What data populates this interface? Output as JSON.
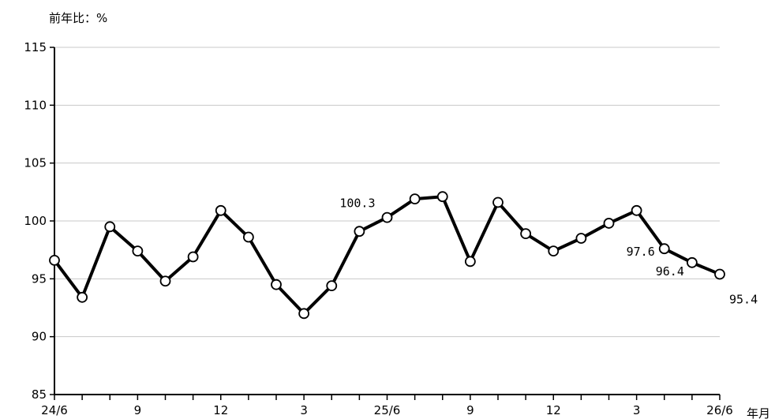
{
  "chart_data": {
    "type": "line",
    "ylabel": "前年比：%",
    "xlabel": "年月",
    "ylim": [
      85,
      115
    ],
    "yticks": [
      85,
      90,
      95,
      100,
      105,
      110,
      115
    ],
    "x": [
      "24/6",
      "24/7",
      "24/8",
      "24/9",
      "24/10",
      "24/11",
      "24/12",
      "25/1",
      "25/2",
      "25/3",
      "25/4",
      "25/5",
      "25/6",
      "25/7",
      "25/8",
      "25/9",
      "25/10",
      "25/11",
      "25/12",
      "26/1",
      "26/2",
      "26/3",
      "26/4",
      "26/5",
      "26/6"
    ],
    "xtick_labels": [
      "24/6",
      "",
      "",
      "9",
      "",
      "",
      "12",
      "",
      "",
      "3",
      "",
      "",
      "25/6",
      "",
      "",
      "9",
      "",
      "",
      "12",
      "",
      "",
      "3",
      "",
      "",
      "26/6"
    ],
    "series": [
      {
        "values": [
          96.6,
          93.4,
          99.5,
          97.4,
          94.8,
          96.9,
          100.9,
          98.6,
          94.5,
          92.0,
          94.4,
          99.1,
          100.3,
          101.9,
          102.1,
          96.5,
          101.6,
          98.9,
          97.4,
          98.5,
          99.8,
          100.9,
          97.6,
          96.4,
          95.4
        ]
      }
    ],
    "annotations": [
      {
        "index": 12,
        "text": "100.3"
      },
      {
        "index": 22,
        "text": "97.6"
      },
      {
        "index": 23,
        "text": "96.4"
      },
      {
        "index": 24,
        "text": "95.4"
      }
    ],
    "grid": true,
    "colors": {
      "line": "#000000",
      "marker_fill": "#ffffff",
      "grid": "#c8c8c8"
    }
  }
}
